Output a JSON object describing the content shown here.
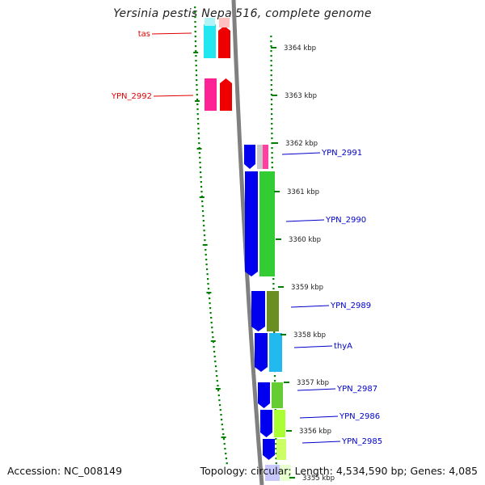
{
  "title": "Yersinia pestis Nepal516, complete genome",
  "footer": {
    "accession": "Accession: NC_008149",
    "summary": "Topology: circular; Length: 4,534,590 bp; Genes: 4,085"
  },
  "ticks": [
    {
      "label": "3364 kbp"
    },
    {
      "label": "3363 kbp"
    },
    {
      "label": "3362 kbp"
    },
    {
      "label": "3361 kbp"
    },
    {
      "label": "3360 kbp"
    },
    {
      "label": "3359 kbp"
    },
    {
      "label": "3358 kbp"
    },
    {
      "label": "3357 kbp"
    },
    {
      "label": "3356 kbp"
    },
    {
      "label": "3355 kbp"
    }
  ],
  "genes_reverse": [
    {
      "name": "tas",
      "color": "#e00000"
    },
    {
      "name": "YPN_2992",
      "color": "#e00000"
    }
  ],
  "genes_forward": [
    {
      "name": "YPN_2991",
      "color": "#0000cc"
    },
    {
      "name": "YPN_2990",
      "color": "#0000cc"
    },
    {
      "name": "YPN_2989",
      "color": "#0000cc"
    },
    {
      "name": "thyA",
      "color": "#0000cc"
    },
    {
      "name": "YPN_2987",
      "color": "#0000cc"
    },
    {
      "name": "YPN_2986",
      "color": "#0000cc"
    },
    {
      "name": "YPN_2985",
      "color": "#0000cc"
    }
  ],
  "colors": {
    "tick_green": "#008000",
    "backbone": "#808080",
    "reverse_strand": "#ee0000",
    "forward_strand": "#0000ee"
  }
}
